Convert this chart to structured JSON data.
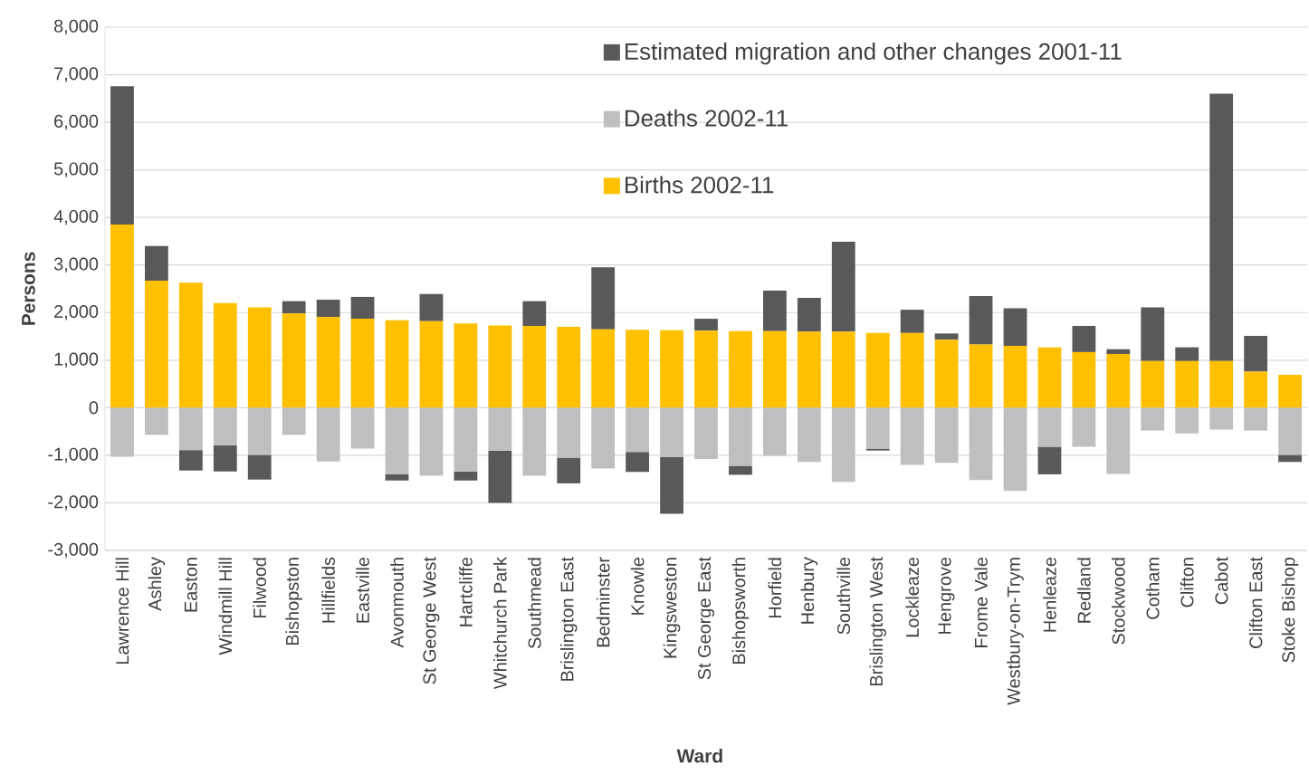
{
  "chart_data": {
    "type": "bar",
    "stacked": true,
    "xlabel": "Ward",
    "ylabel": "Persons",
    "categories": [
      "Lawrence Hill",
      "Ashley",
      "Easton",
      "Windmill Hill",
      "Filwood",
      "Bishopston",
      "Hillfields",
      "Eastville",
      "Avonmouth",
      "St George West",
      "Hartcliffe",
      "Whitchurch Park",
      "Southmead",
      "Brislington East",
      "Bedminster",
      "Knowle",
      "Kingsweston",
      "St George East",
      "Bishopsworth",
      "Horfield",
      "Henbury",
      "Southville",
      "Brislington West",
      "Lockleaze",
      "Hengrove",
      "Frome Vale",
      "Westbury-on-Trym",
      "Henleaze",
      "Redland",
      "Stockwood",
      "Cotham",
      "Clifton",
      "Cabot",
      "Clifton East",
      "Stoke Bishop"
    ],
    "series": [
      {
        "name": "Births 2002-11",
        "color": "#ffc000",
        "values": [
          3850,
          2670,
          2630,
          2200,
          2110,
          1980,
          1910,
          1870,
          1840,
          1820,
          1770,
          1730,
          1720,
          1700,
          1650,
          1640,
          1630,
          1620,
          1610,
          1610,
          1600,
          1600,
          1570,
          1570,
          1430,
          1330,
          1300,
          1270,
          1170,
          1130,
          980,
          980,
          980,
          760,
          690
        ]
      },
      {
        "name": "Deaths 2002-11",
        "color": "#bfbfbf",
        "values": [
          -1030,
          -570,
          -890,
          -790,
          -990,
          -570,
          -1130,
          -860,
          -1400,
          -1430,
          -1340,
          -900,
          -1430,
          -1050,
          -1280,
          -930,
          -1040,
          -1080,
          -1220,
          -1010,
          -1140,
          -1560,
          -860,
          -1200,
          -1160,
          -1520,
          -1750,
          -820,
          -820,
          -1390,
          -480,
          -540,
          -460,
          -480,
          -990
        ]
      },
      {
        "name": "Estimated migration and other changes 2001-11",
        "color": "#595959",
        "values": [
          2910,
          730,
          -430,
          -550,
          -520,
          260,
          360,
          460,
          -130,
          570,
          -190,
          -1100,
          520,
          -540,
          1300,
          -420,
          -1190,
          250,
          -190,
          850,
          710,
          1890,
          -40,
          490,
          130,
          1020,
          790,
          -580,
          550,
          100,
          1130,
          290,
          5620,
          750,
          -150
        ]
      }
    ],
    "ylim": [
      -3000,
      8000
    ],
    "yticks": [
      {
        "value": -3000,
        "label": "-3,000"
      },
      {
        "value": -2000,
        "label": "-2,000"
      },
      {
        "value": -1000,
        "label": "-1,000"
      },
      0,
      {
        "value": 1000,
        "label": "1,000"
      },
      {
        "value": 2000,
        "label": "2,000"
      },
      {
        "value": 3000,
        "label": "3,000"
      },
      {
        "value": 4000,
        "label": "4,000"
      },
      {
        "value": 5000,
        "label": "5,000"
      },
      {
        "value": 6000,
        "label": "6,000"
      },
      {
        "value": 7000,
        "label": "7,000"
      },
      {
        "value": 8000,
        "label": "8,000"
      }
    ],
    "grid": "y",
    "legend": "top right"
  }
}
